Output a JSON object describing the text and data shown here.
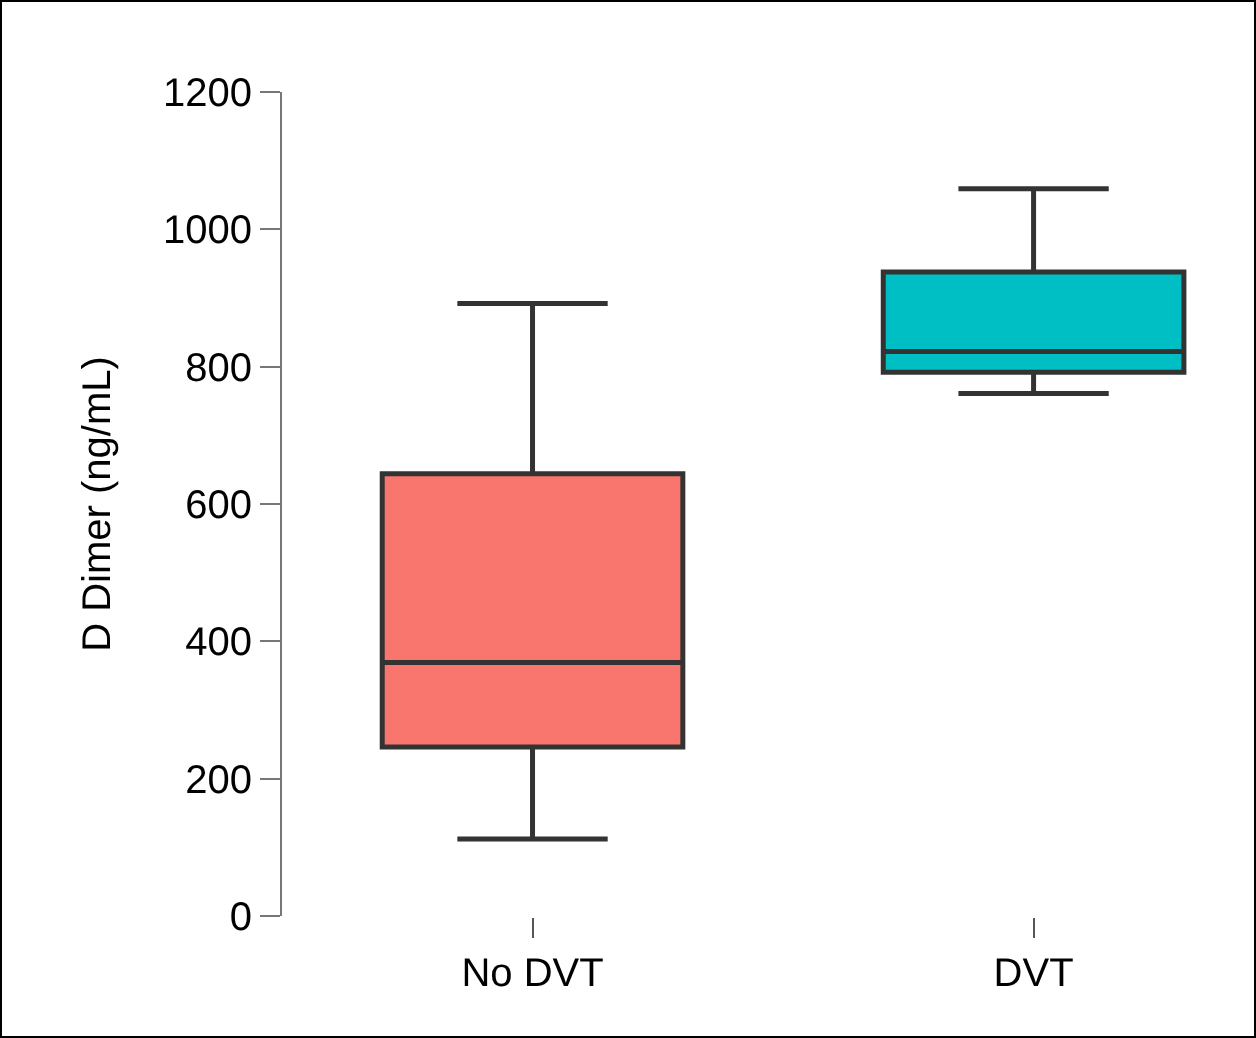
{
  "chart_data": {
    "type": "box",
    "ylabel": "D Dimer (ng/mL)",
    "categories": [
      "No DVT",
      "DVT"
    ],
    "boxes": [
      {
        "low": 112,
        "q1": 246,
        "median": 369,
        "q3": 644,
        "high": 892
      },
      {
        "low": 761,
        "q1": 792,
        "median": 822,
        "q3": 938,
        "high": 1059
      }
    ],
    "colors": [
      "#f8766d",
      "#00bfc4"
    ],
    "ylim": [
      0,
      1200
    ],
    "yticks": [
      0,
      200,
      400,
      600,
      800,
      1000,
      1200
    ]
  }
}
